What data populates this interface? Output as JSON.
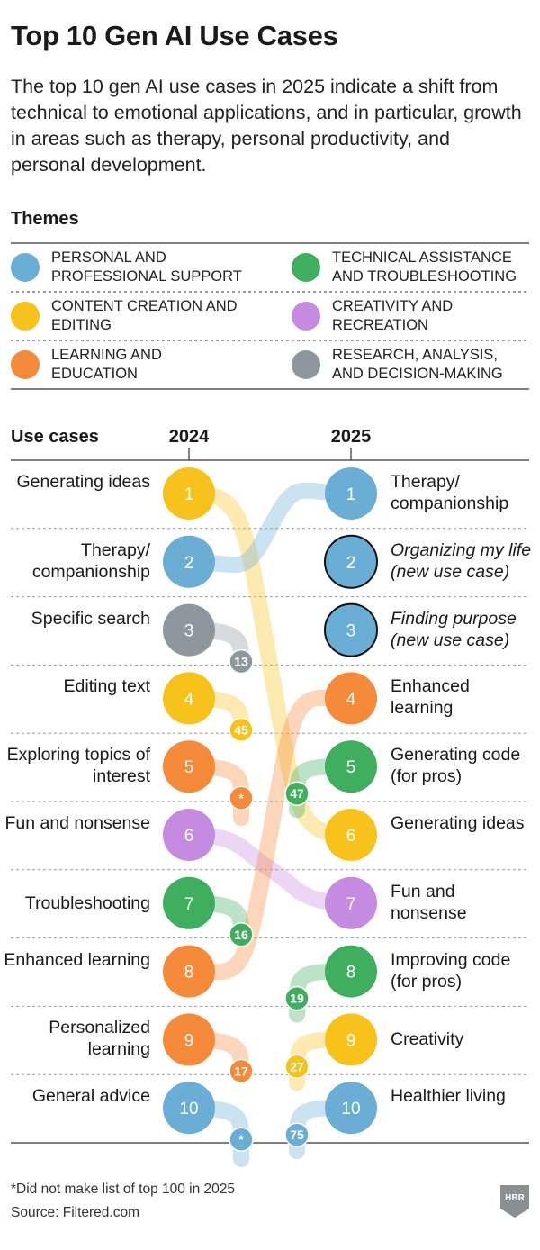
{
  "title": "Top 10 Gen AI Use Cases",
  "subtitle": "The top 10 gen AI use cases in 2025 indicate a shift from technical to emotional applications, and in particular, growth in areas such as therapy, personal productivity, and personal development.",
  "themes_heading": "Themes",
  "themes": [
    {
      "key": "support",
      "label": "Personal and professional support",
      "color": "#6aaed6"
    },
    {
      "key": "tech",
      "label": "Technical assistance and troubleshooting",
      "color": "#3fae5e"
    },
    {
      "key": "content",
      "label": "Content creation and editing",
      "color": "#f7c21c"
    },
    {
      "key": "creativity",
      "label": "Creativity and recreation",
      "color": "#c58be0"
    },
    {
      "key": "learning",
      "label": "Learning and education",
      "color": "#f58a3a"
    },
    {
      "key": "research",
      "label": "Research, analysis, and decision-making",
      "color": "#8d979d"
    }
  ],
  "use_cases_heading": "Use cases",
  "footnote": "*Did not make list of top 100 in 2025",
  "source": "Source: Filtered.com",
  "logo_text": "HBR",
  "chart_data": {
    "type": "slope",
    "years": [
      "2024",
      "2025"
    ],
    "rank_2024": [
      {
        "rank": 1,
        "label": "Generating ideas",
        "theme": "content",
        "rank_label": "1",
        "rank_2025": 6
      },
      {
        "rank": 2,
        "label": "Therapy/ companionship",
        "theme": "support",
        "rank_label": "2",
        "rank_2025": 1
      },
      {
        "rank": 3,
        "label": "Specific search",
        "theme": "research",
        "rank_label": "3",
        "rank_2025": 13,
        "outside_label": "13"
      },
      {
        "rank": 4,
        "label": "Editing text",
        "theme": "content",
        "rank_label": "4",
        "rank_2025": 45,
        "outside_label": "45"
      },
      {
        "rank": 5,
        "label": "Exploring topics of interest",
        "theme": "learning",
        "rank_label": "5",
        "rank_2025": null,
        "outside_label": "*"
      },
      {
        "rank": 6,
        "label": "Fun and nonsense",
        "theme": "creativity",
        "rank_label": "6",
        "rank_2025": 7
      },
      {
        "rank": 7,
        "label": "Troubleshooting",
        "theme": "tech",
        "rank_label": "7",
        "rank_2025": 16,
        "outside_label": "16"
      },
      {
        "rank": 8,
        "label": "Enhanced learning",
        "theme": "learning",
        "rank_label": "8",
        "rank_2025": 4
      },
      {
        "rank": 9,
        "label": "Personalized learning",
        "theme": "learning",
        "rank_label": "9",
        "rank_2025": 17,
        "outside_label": "17"
      },
      {
        "rank": 10,
        "label": "General advice",
        "theme": "support",
        "rank_label": "10",
        "rank_2025": null,
        "outside_label": "*"
      }
    ],
    "rank_2025": [
      {
        "rank": 1,
        "label": "Therapy/ companionship",
        "theme": "support",
        "rank_label": "1",
        "new": false
      },
      {
        "rank": 2,
        "label": "Organizing my life (new use case)",
        "theme": "support",
        "rank_label": "2",
        "new": true
      },
      {
        "rank": 3,
        "label": "Finding purpose (new use case)",
        "theme": "support",
        "rank_label": "3",
        "new": true
      },
      {
        "rank": 4,
        "label": "Enhanced learning",
        "theme": "learning",
        "rank_label": "4",
        "new": false
      },
      {
        "rank": 5,
        "label": "Generating code (for pros)",
        "theme": "tech",
        "rank_label": "5",
        "new": false,
        "rank_2024": 47,
        "prev_label": "47"
      },
      {
        "rank": 6,
        "label": "Generating ideas",
        "theme": "content",
        "rank_label": "6",
        "new": false
      },
      {
        "rank": 7,
        "label": "Fun and nonsense",
        "theme": "creativity",
        "rank_label": "7",
        "new": false
      },
      {
        "rank": 8,
        "label": "Improving code (for pros)",
        "theme": "tech",
        "rank_label": "8",
        "new": false,
        "rank_2024": 19,
        "prev_label": "19"
      },
      {
        "rank": 9,
        "label": "Creativity",
        "theme": "content",
        "rank_label": "9",
        "new": false,
        "rank_2024": 27,
        "prev_label": "27"
      },
      {
        "rank": 10,
        "label": "Healthier living",
        "theme": "support",
        "rank_label": "10",
        "new": false,
        "rank_2024": 75,
        "prev_label": "75"
      }
    ]
  }
}
